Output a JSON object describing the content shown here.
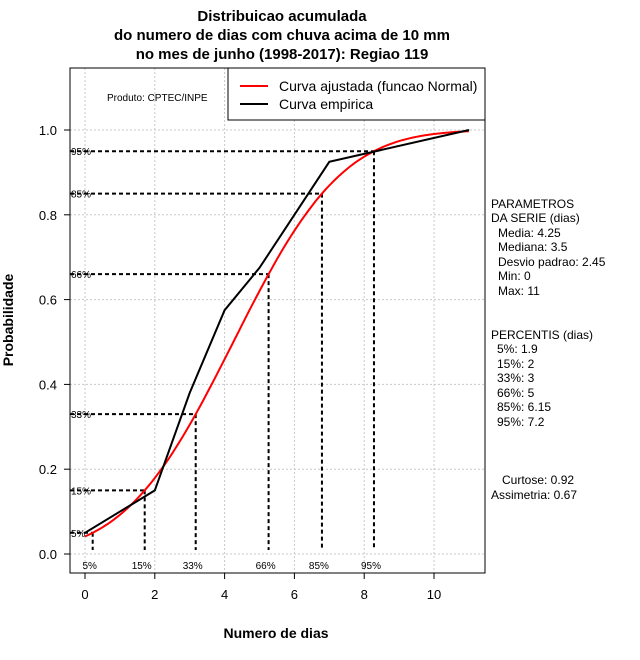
{
  "chart_data": {
    "type": "line",
    "title": [
      "Distribuicao acumulada",
      "do numero de dias com chuva acima de 10 mm",
      "no mes de junho (1998-2017): Regiao 119"
    ],
    "xlabel": "Numero de dias",
    "ylabel": "Probabilidade",
    "xlim": [
      -0.4,
      11.5
    ],
    "ylim": [
      -0.04,
      1.14
    ],
    "x_ticks": [
      0,
      2,
      4,
      6,
      8,
      10
    ],
    "y_ticks": [
      "0.0",
      "0.2",
      "0.4",
      "0.6",
      "0.8",
      "1.0"
    ],
    "grid": true,
    "legend_position": "top-right",
    "series": [
      {
        "name": "Curva ajustada (funcao Normal)",
        "color": "#ff0000",
        "distribution": "normal",
        "mean": 4.25,
        "sd": 2.45,
        "x_range": [
          0,
          11
        ]
      },
      {
        "name": "Curva empirica",
        "color": "#000000",
        "x": [
          0,
          2,
          3,
          4,
          5,
          7,
          11
        ],
        "y": [
          0.05,
          0.15,
          0.38,
          0.575,
          0.675,
          0.925,
          1.0
        ]
      }
    ],
    "percentile_markers": [
      {
        "label": "5%",
        "p": 0.05
      },
      {
        "label": "15%",
        "p": 0.15
      },
      {
        "label": "33%",
        "p": 0.33
      },
      {
        "label": "66%",
        "p": 0.66
      },
      {
        "label": "85%",
        "p": 0.85
      },
      {
        "label": "95%",
        "p": 0.95
      }
    ],
    "annotation": "Produto: CPTEC/INPE"
  },
  "side_panel": {
    "params_title": [
      "PARAMETROS",
      "DA SERIE (dias)"
    ],
    "params": [
      "Media: 4.25",
      "Mediana: 3.5",
      "Desvio padrao: 2.45",
      "Min: 0",
      "Max: 11"
    ],
    "percentis_title": "PERCENTIS (dias)",
    "percentis": [
      "5%: 1.9",
      "15%: 2",
      "33%: 3",
      "66%: 5",
      "85%: 6.15",
      "95%: 7.2"
    ],
    "curtose": "Curtose: 0.92",
    "assimetria": "Assimetria: 0.67"
  }
}
